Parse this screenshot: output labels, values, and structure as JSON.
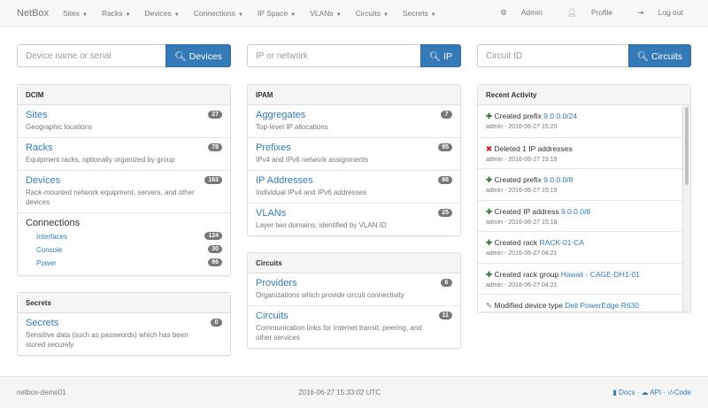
{
  "nav": {
    "brand": "NetBox",
    "menus": [
      "Sites",
      "Racks",
      "Devices",
      "Connections",
      "IP Space",
      "VLANs",
      "Circuits",
      "Secrets"
    ],
    "admin": "Admin",
    "profile": "Profile",
    "logout": "Log out"
  },
  "search": [
    {
      "placeholder": "Device name or serial",
      "button": "Devices"
    },
    {
      "placeholder": "IP or network",
      "button": "IP"
    },
    {
      "placeholder": "Circuit ID",
      "button": "Circuits"
    }
  ],
  "dcim": {
    "title": "DCIM",
    "items": [
      {
        "label": "Sites",
        "desc": "Geographic locations",
        "count": "27"
      },
      {
        "label": "Racks",
        "desc": "Equipment racks, optionally organized by group",
        "count": "78"
      },
      {
        "label": "Devices",
        "desc": "Rack-mounted network equipment, servers, and other devices",
        "count": "163"
      }
    ],
    "connections": {
      "label": "Connections",
      "items": [
        {
          "label": "Interfaces",
          "count": "124"
        },
        {
          "label": "Console",
          "count": "30"
        },
        {
          "label": "Power",
          "count": "86"
        }
      ]
    }
  },
  "secrets": {
    "title": "Secrets",
    "items": [
      {
        "label": "Secrets",
        "desc": "Sensitive data (such as passwords) which has been stored securely",
        "count": "0"
      }
    ]
  },
  "ipam": {
    "title": "IPAM",
    "items": [
      {
        "label": "Aggregates",
        "desc": "Top-level IP allocations",
        "count": "7"
      },
      {
        "label": "Prefixes",
        "desc": "IPv4 and IPv6 network assignments",
        "count": "95"
      },
      {
        "label": "IP Addresses",
        "desc": "Individual IPv4 and IPv6 addresses",
        "count": "88"
      },
      {
        "label": "VLANs",
        "desc": "Layer two domains, identified by VLAN ID",
        "count": "25"
      }
    ]
  },
  "circuits": {
    "title": "Circuits",
    "items": [
      {
        "label": "Providers",
        "desc": "Organizations which provide circuit connectivity",
        "count": "6"
      },
      {
        "label": "Circuits",
        "desc": "Communication links for Internet transit, peering, and other services",
        "count": "11"
      }
    ]
  },
  "activity": {
    "title": "Recent Activity",
    "items": [
      {
        "icon": "plus",
        "action": "Created prefix",
        "link": "9.0.0.0/24",
        "meta": "admin - 2016-06-27 15:20"
      },
      {
        "icon": "remove",
        "action": "Deleted 1 IP addresses",
        "link": "",
        "meta": "admin - 2016-06-27 15:19"
      },
      {
        "icon": "plus",
        "action": "Created prefix",
        "link": "9.0.0.0/8",
        "meta": "admin - 2016-06-27 15:19"
      },
      {
        "icon": "plus",
        "action": "Created IP address",
        "link": "9.0.0.0/8",
        "meta": "admin - 2016-06-27 15:18"
      },
      {
        "icon": "plus",
        "action": "Created rack",
        "link": "RACK-01-CA",
        "meta": "admin - 2016-06-27 04:21"
      },
      {
        "icon": "plus",
        "action": "Created rack group",
        "link": "Hawaii - CAGE-DH1-01",
        "meta": "admin - 2016-06-27 04:21"
      },
      {
        "icon": "pencil",
        "action": "Modified device type",
        "link": "Dell PowerEdge R630",
        "meta": ""
      }
    ]
  },
  "footer": {
    "hostname": "netbox-demo01",
    "time": "2016-06-27 15:33:02 UTC",
    "docs": "Docs",
    "api": "API",
    "code": "Code"
  }
}
